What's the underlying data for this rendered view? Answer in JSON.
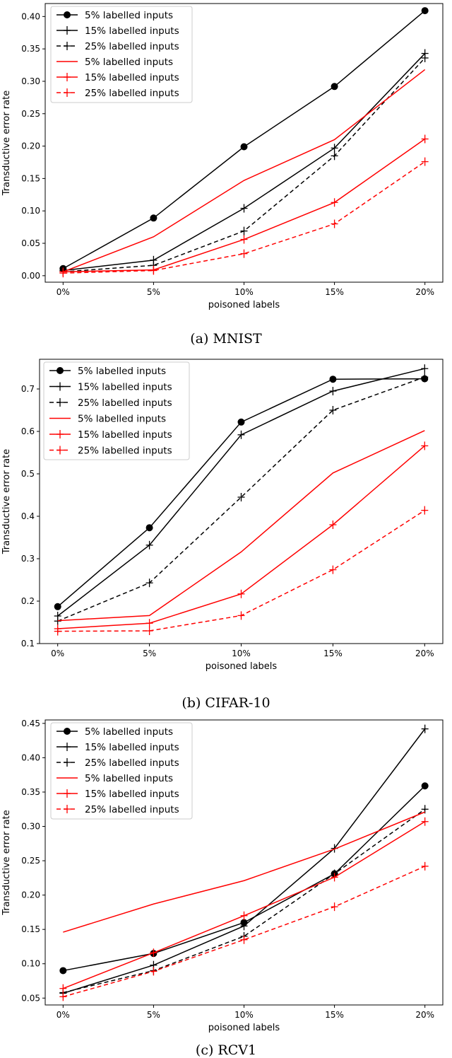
{
  "chart_data": [
    {
      "type": "line",
      "caption": "(a) MNIST",
      "xlabel": "poisoned labels",
      "ylabel": "Transductive error rate",
      "categories": [
        "0%",
        "5%",
        "10%",
        "15%",
        "20%"
      ],
      "ylim": [
        -0.01,
        0.42
      ],
      "yticks": [
        "0.00",
        "0.05",
        "0.10",
        "0.15",
        "0.20",
        "0.25",
        "0.30",
        "0.35",
        "0.40"
      ],
      "series": [
        {
          "name": "5% labelled inputs",
          "color": "#000000",
          "style": "solid",
          "marker": "circle",
          "values": [
            0.011,
            0.089,
            0.199,
            0.292,
            0.409
          ]
        },
        {
          "name": "15% labelled inputs",
          "color": "#000000",
          "style": "solid",
          "marker": "plus",
          "values": [
            0.008,
            0.024,
            0.104,
            0.197,
            0.343
          ]
        },
        {
          "name": "25% labelled inputs",
          "color": "#000000",
          "style": "dashed",
          "marker": "plus",
          "values": [
            0.006,
            0.016,
            0.069,
            0.185,
            0.336
          ]
        },
        {
          "name": "5% labelled inputs",
          "color": "#ff0000",
          "style": "solid",
          "marker": "none",
          "values": [
            0.006,
            0.06,
            0.147,
            0.21,
            0.318
          ]
        },
        {
          "name": "15% labelled inputs",
          "color": "#ff0000",
          "style": "solid",
          "marker": "plus",
          "values": [
            0.006,
            0.009,
            0.056,
            0.113,
            0.211
          ]
        },
        {
          "name": "25% labelled inputs",
          "color": "#ff0000",
          "style": "dashed",
          "marker": "plus",
          "values": [
            0.004,
            0.008,
            0.034,
            0.08,
            0.176
          ]
        }
      ]
    },
    {
      "type": "line",
      "caption": "(b) CIFAR-10",
      "xlabel": "poisoned labels",
      "ylabel": "Transductive error rate",
      "categories": [
        "0%",
        "5%",
        "10%",
        "15%",
        "20%"
      ],
      "ylim": [
        0.1,
        0.77
      ],
      "yticks": [
        "0.1",
        "0.2",
        "0.3",
        "0.4",
        "0.5",
        "0.6",
        "0.7"
      ],
      "series": [
        {
          "name": "5% labelled inputs",
          "color": "#000000",
          "style": "solid",
          "marker": "circle",
          "values": [
            0.187,
            0.373,
            0.622,
            0.723,
            0.724
          ]
        },
        {
          "name": "15% labelled inputs",
          "color": "#000000",
          "style": "solid",
          "marker": "plus",
          "values": [
            0.165,
            0.332,
            0.592,
            0.695,
            0.748
          ]
        },
        {
          "name": "25% labelled inputs",
          "color": "#000000",
          "style": "dashed",
          "marker": "plus",
          "values": [
            0.153,
            0.243,
            0.445,
            0.65,
            0.728
          ]
        },
        {
          "name": "5% labelled inputs",
          "color": "#ff0000",
          "style": "solid",
          "marker": "none",
          "values": [
            0.154,
            0.166,
            0.316,
            0.502,
            0.602
          ]
        },
        {
          "name": "15% labelled inputs",
          "color": "#ff0000",
          "style": "solid",
          "marker": "plus",
          "values": [
            0.135,
            0.148,
            0.217,
            0.38,
            0.566
          ]
        },
        {
          "name": "25% labelled inputs",
          "color": "#ff0000",
          "style": "dashed",
          "marker": "plus",
          "values": [
            0.129,
            0.13,
            0.166,
            0.274,
            0.414
          ]
        }
      ]
    },
    {
      "type": "line",
      "caption": "(c) RCV1",
      "xlabel": "poisoned labels",
      "ylabel": "Transductive error rate",
      "categories": [
        "0%",
        "5%",
        "10%",
        "15%",
        "20%"
      ],
      "ylim": [
        0.04,
        0.455
      ],
      "yticks": [
        "0.05",
        "0.10",
        "0.15",
        "0.20",
        "0.25",
        "0.30",
        "0.35",
        "0.40",
        "0.45"
      ],
      "series": [
        {
          "name": "5% labelled inputs",
          "color": "#000000",
          "style": "solid",
          "marker": "circle",
          "values": [
            0.09,
            0.115,
            0.16,
            0.231,
            0.359
          ]
        },
        {
          "name": "15% labelled inputs",
          "color": "#000000",
          "style": "solid",
          "marker": "plus",
          "values": [
            0.057,
            0.098,
            0.155,
            0.268,
            0.442
          ]
        },
        {
          "name": "25% labelled inputs",
          "color": "#000000",
          "style": "dashed",
          "marker": "plus",
          "values": [
            0.058,
            0.09,
            0.14,
            0.231,
            0.325
          ]
        },
        {
          "name": "5% labelled inputs",
          "color": "#ff0000",
          "style": "solid",
          "marker": "none",
          "values": [
            0.146,
            0.187,
            0.221,
            0.267,
            0.321
          ]
        },
        {
          "name": "15% labelled inputs",
          "color": "#ff0000",
          "style": "solid",
          "marker": "plus",
          "values": [
            0.064,
            0.116,
            0.17,
            0.226,
            0.307
          ]
        },
        {
          "name": "25% labelled inputs",
          "color": "#ff0000",
          "style": "dashed",
          "marker": "plus",
          "values": [
            0.052,
            0.089,
            0.135,
            0.183,
            0.242
          ]
        }
      ]
    }
  ]
}
